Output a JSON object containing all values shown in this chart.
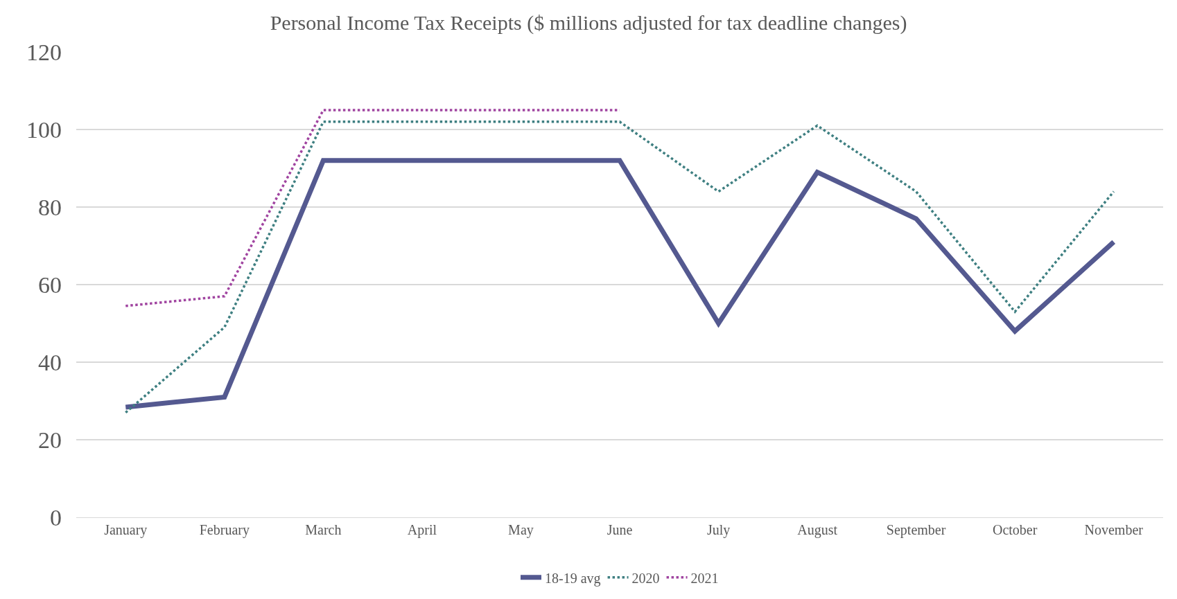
{
  "chart_data": {
    "type": "line",
    "title": "Personal Income Tax Receipts ($ millions adjusted for tax deadline changes)",
    "categories": [
      "January",
      "February",
      "March",
      "April",
      "May",
      "June",
      "July",
      "August",
      "September",
      "October",
      "November"
    ],
    "series": [
      {
        "name": "18-19 avg",
        "color": "#545990",
        "line_style": "solid",
        "values": [
          28.4,
          31,
          92,
          92,
          92,
          92,
          50,
          89,
          77,
          48,
          71
        ]
      },
      {
        "name": "2020",
        "color": "#3e7f81",
        "line_style": "dotted",
        "values": [
          27,
          49,
          102,
          102,
          102,
          102,
          84,
          101,
          84,
          53,
          84
        ]
      },
      {
        "name": "2021",
        "color": "#a044a0",
        "line_style": "dotted",
        "values": [
          54.5,
          57,
          105,
          105,
          105,
          105,
          null,
          null,
          null,
          null,
          null
        ]
      }
    ],
    "ylim": [
      0,
      120
    ],
    "yticks": [
      0,
      20,
      40,
      60,
      80,
      100,
      120
    ],
    "grid": "y",
    "legend": "bottom",
    "marker": "none"
  }
}
